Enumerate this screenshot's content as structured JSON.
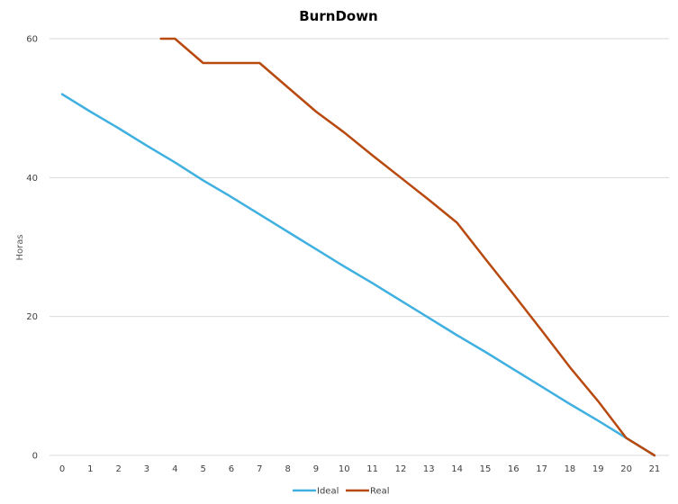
{
  "chart_data": {
    "type": "line",
    "title": "BurnDown",
    "xlabel": "",
    "ylabel": "Horas",
    "categories": [
      0,
      1,
      2,
      3,
      4,
      5,
      6,
      7,
      8,
      9,
      10,
      11,
      12,
      13,
      14,
      15,
      16,
      17,
      18,
      19,
      20,
      21
    ],
    "ylim": [
      0,
      60
    ],
    "yticks": [
      0,
      20,
      40,
      60
    ],
    "grid": true,
    "legend": "bottom",
    "series": [
      {
        "name": "Ideal",
        "color": "#3fb0e0",
        "values": [
          52.0,
          49.5,
          47.1,
          44.6,
          42.2,
          39.6,
          37.2,
          34.7,
          32.2,
          29.7,
          27.2,
          24.8,
          22.3,
          19.8,
          17.3,
          14.9,
          12.4,
          9.9,
          7.4,
          5.0,
          2.5,
          0.0
        ]
      },
      {
        "name": "Real",
        "color": "#b8490f",
        "values": [
          null,
          null,
          null,
          null,
          60.0,
          56.5,
          56.5,
          56.5,
          53.0,
          49.5,
          46.5,
          43.2,
          40.0,
          36.8,
          33.5,
          28.3,
          23.2,
          18.0,
          12.7,
          7.8,
          2.5,
          0.0
        ],
        "start": {
          "x": 3.5,
          "y": 60.0
        }
      }
    ]
  }
}
